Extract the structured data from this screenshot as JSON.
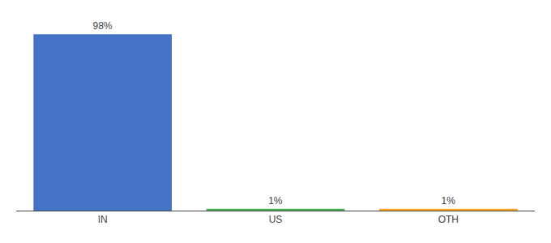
{
  "chart_data": {
    "type": "bar",
    "categories": [
      "IN",
      "US",
      "OTH"
    ],
    "values": [
      98,
      1,
      1
    ],
    "value_labels": [
      "98%",
      "1%",
      "1%"
    ],
    "colors": [
      "#4472c4",
      "#4caf50",
      "#ffa726"
    ],
    "ylim": [
      0,
      108
    ],
    "data_labels": true,
    "tick_labels": "x",
    "grid": false
  }
}
